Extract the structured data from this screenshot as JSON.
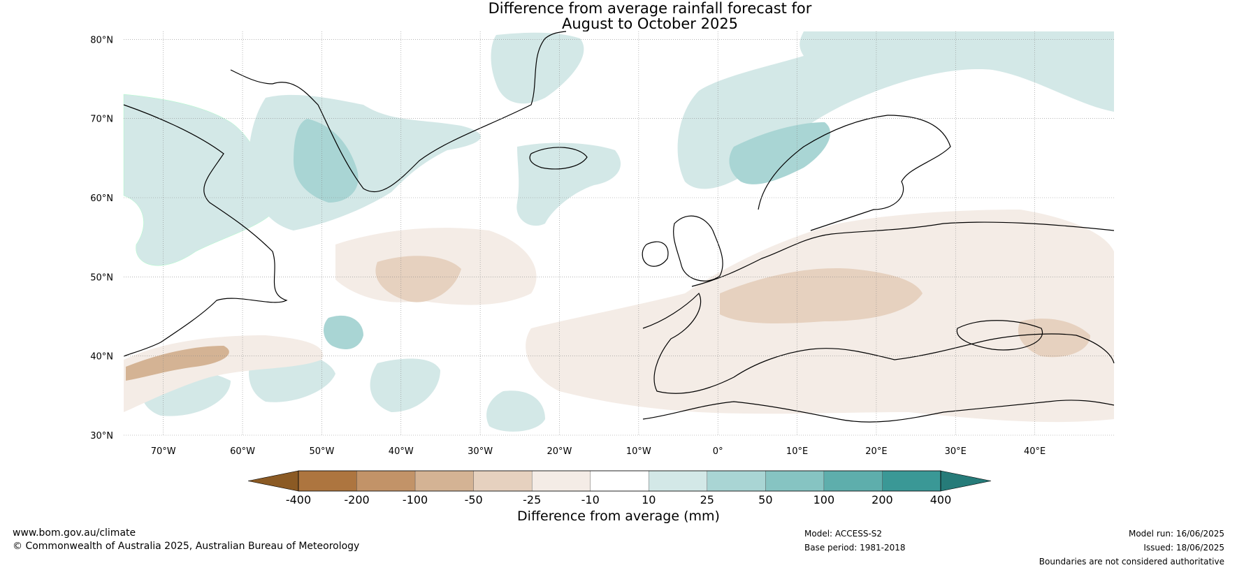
{
  "title": {
    "line1": "Difference from average rainfall forecast for",
    "line2": "August to October 2025"
  },
  "map": {
    "lat_labels": [
      "80°N",
      "70°N",
      "60°N",
      "50°N",
      "40°N",
      "30°N"
    ],
    "lon_labels": [
      "70°W",
      "60°W",
      "50°W",
      "40°W",
      "30°W",
      "20°W",
      "10°W",
      "0°",
      "10°E",
      "20°E",
      "30°E",
      "40°E"
    ],
    "lat_range": [
      30,
      81
    ],
    "lon_range": [
      -75,
      50
    ]
  },
  "legend": {
    "title": "Difference from average (mm)",
    "tick_labels": [
      "-400",
      "-200",
      "-100",
      "-50",
      "-25",
      "-10",
      "10",
      "25",
      "50",
      "100",
      "200",
      "400"
    ],
    "colors": [
      "#8b5a24",
      "#ad753f",
      "#c29368",
      "#d4b394",
      "#e6d1bf",
      "#f4ece6",
      "#ffffff",
      "#d3e8e7",
      "#a9d5d4",
      "#86c4c2",
      "#5eaeac",
      "#3a9896",
      "#267b79"
    ]
  },
  "footer": {
    "website": "www.bom.gov.au/climate",
    "copyright": "© Commonwealth of Australia 2025, Australian Bureau of Meteorology",
    "model": "Model: ACCESS-S2",
    "base_period": "Base period: 1981-2018",
    "model_run": "Model run: 16/06/2025",
    "issued": "Issued: 18/06/2025",
    "disclaimer": "Boundaries are not considered authoritative"
  }
}
